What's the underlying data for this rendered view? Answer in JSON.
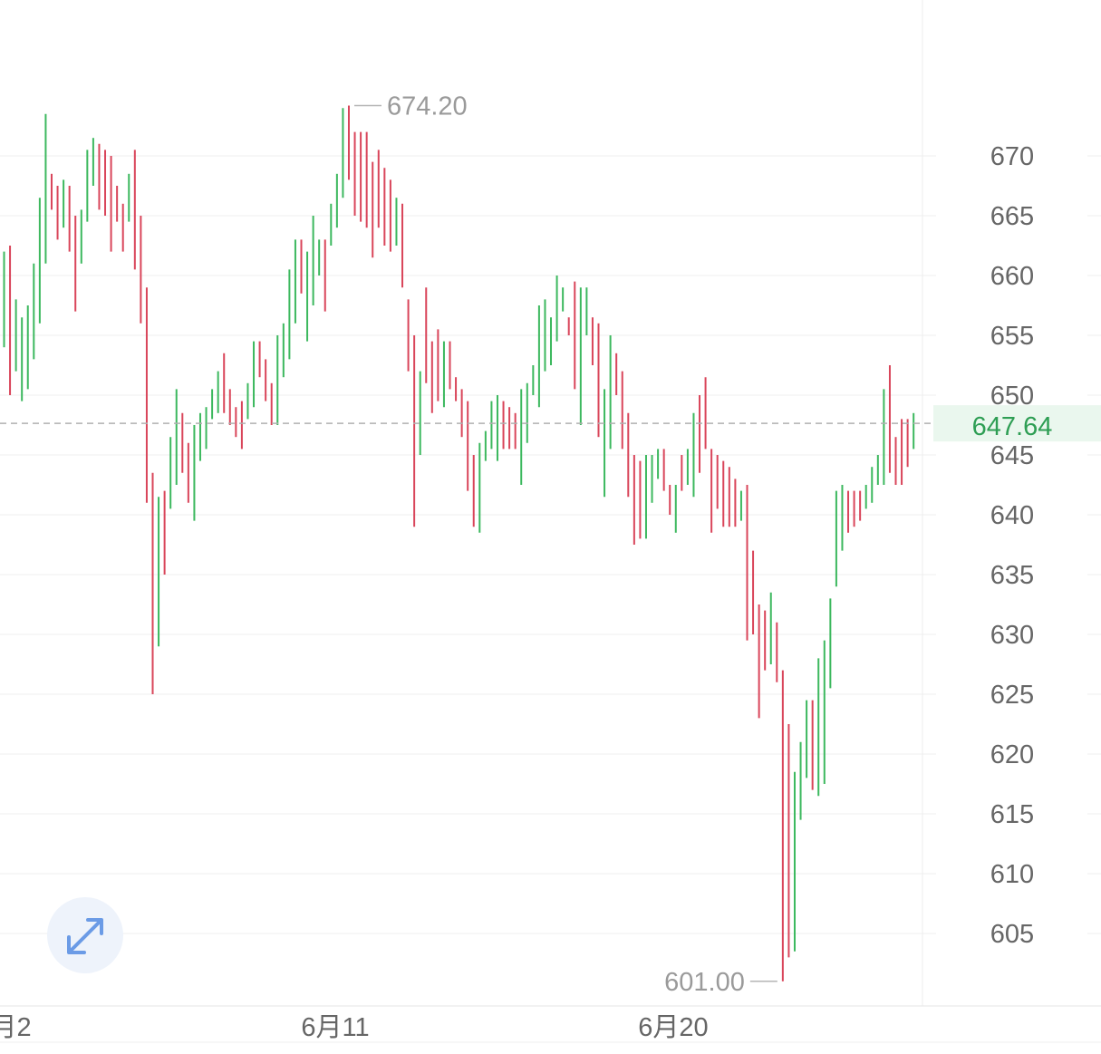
{
  "chart_data": {
    "type": "ohlc",
    "y_ticks": [
      "670",
      "665",
      "660",
      "655",
      "650",
      "645",
      "640",
      "635",
      "630",
      "625",
      "620",
      "615",
      "610",
      "605"
    ],
    "x_labels": [
      "月2",
      "6月11",
      "6月20"
    ],
    "ylim": [
      597,
      679
    ],
    "grid": true,
    "current_price": {
      "value": 647.64,
      "label": "647.64",
      "color": "#2e9e54"
    },
    "annotations": {
      "high": "674.20",
      "low": "601.00"
    },
    "colors": {
      "up": "#3cb85e",
      "down": "#d9455a",
      "grid": "#efefef",
      "price_line": "#b0b0b0"
    },
    "bars": [
      {
        "h": 662.0,
        "l": 654.0,
        "d": "up"
      },
      {
        "h": 662.5,
        "l": 650.0,
        "d": "down"
      },
      {
        "h": 658.0,
        "l": 652.0,
        "d": "up"
      },
      {
        "h": 656.5,
        "l": 649.5,
        "d": "up"
      },
      {
        "h": 657.5,
        "l": 650.5,
        "d": "up"
      },
      {
        "h": 661.0,
        "l": 653.0,
        "d": "up"
      },
      {
        "h": 666.5,
        "l": 656.0,
        "d": "up"
      },
      {
        "h": 673.5,
        "l": 661.0,
        "d": "up"
      },
      {
        "h": 668.5,
        "l": 665.5,
        "d": "down"
      },
      {
        "h": 667.5,
        "l": 663.0,
        "d": "down"
      },
      {
        "h": 668.0,
        "l": 664.0,
        "d": "up"
      },
      {
        "h": 667.5,
        "l": 662.0,
        "d": "down"
      },
      {
        "h": 665.0,
        "l": 657.0,
        "d": "down"
      },
      {
        "h": 665.5,
        "l": 661.0,
        "d": "up"
      },
      {
        "h": 670.5,
        "l": 664.5,
        "d": "up"
      },
      {
        "h": 671.5,
        "l": 667.5,
        "d": "up"
      },
      {
        "h": 671.0,
        "l": 665.5,
        "d": "down"
      },
      {
        "h": 670.5,
        "l": 665.0,
        "d": "down"
      },
      {
        "h": 670.0,
        "l": 662.0,
        "d": "down"
      },
      {
        "h": 667.5,
        "l": 664.5,
        "d": "down"
      },
      {
        "h": 666.0,
        "l": 662.0,
        "d": "down"
      },
      {
        "h": 668.5,
        "l": 664.5,
        "d": "up"
      },
      {
        "h": 670.5,
        "l": 660.5,
        "d": "down"
      },
      {
        "h": 665.0,
        "l": 656.0,
        "d": "down"
      },
      {
        "h": 659.0,
        "l": 641.0,
        "d": "down"
      },
      {
        "h": 643.5,
        "l": 625.0,
        "d": "down"
      },
      {
        "h": 641.5,
        "l": 629.0,
        "d": "up"
      },
      {
        "h": 642.0,
        "l": 635.0,
        "d": "down"
      },
      {
        "h": 646.5,
        "l": 640.5,
        "d": "up"
      },
      {
        "h": 650.5,
        "l": 642.5,
        "d": "up"
      },
      {
        "h": 648.5,
        "l": 643.5,
        "d": "down"
      },
      {
        "h": 646.0,
        "l": 641.0,
        "d": "down"
      },
      {
        "h": 647.5,
        "l": 639.5,
        "d": "up"
      },
      {
        "h": 648.5,
        "l": 644.5,
        "d": "up"
      },
      {
        "h": 649.0,
        "l": 645.5,
        "d": "up"
      },
      {
        "h": 650.5,
        "l": 648.0,
        "d": "up"
      },
      {
        "h": 652.0,
        "l": 648.5,
        "d": "up"
      },
      {
        "h": 653.5,
        "l": 648.5,
        "d": "down"
      },
      {
        "h": 650.5,
        "l": 647.5,
        "d": "down"
      },
      {
        "h": 649.0,
        "l": 646.5,
        "d": "down"
      },
      {
        "h": 649.5,
        "l": 645.5,
        "d": "down"
      },
      {
        "h": 651.0,
        "l": 648.0,
        "d": "up"
      },
      {
        "h": 654.5,
        "l": 649.0,
        "d": "up"
      },
      {
        "h": 654.5,
        "l": 651.5,
        "d": "down"
      },
      {
        "h": 653.0,
        "l": 649.5,
        "d": "down"
      },
      {
        "h": 651.0,
        "l": 647.5,
        "d": "down"
      },
      {
        "h": 655.0,
        "l": 647.5,
        "d": "up"
      },
      {
        "h": 656.0,
        "l": 651.5,
        "d": "up"
      },
      {
        "h": 660.5,
        "l": 653.0,
        "d": "up"
      },
      {
        "h": 663.0,
        "l": 656.0,
        "d": "up"
      },
      {
        "h": 663.0,
        "l": 658.5,
        "d": "down"
      },
      {
        "h": 662.0,
        "l": 654.5,
        "d": "up"
      },
      {
        "h": 665.0,
        "l": 657.5,
        "d": "up"
      },
      {
        "h": 663.0,
        "l": 660.0,
        "d": "up"
      },
      {
        "h": 663.0,
        "l": 657.0,
        "d": "down"
      },
      {
        "h": 666.0,
        "l": 662.5,
        "d": "up"
      },
      {
        "h": 668.5,
        "l": 664.0,
        "d": "up"
      },
      {
        "h": 674.0,
        "l": 666.5,
        "d": "up"
      },
      {
        "h": 674.2,
        "l": 668.0,
        "d": "down"
      },
      {
        "h": 672.0,
        "l": 665.0,
        "d": "down"
      },
      {
        "h": 672.0,
        "l": 664.5,
        "d": "down"
      },
      {
        "h": 672.0,
        "l": 664.0,
        "d": "down"
      },
      {
        "h": 669.5,
        "l": 661.5,
        "d": "down"
      },
      {
        "h": 670.5,
        "l": 664.0,
        "d": "down"
      },
      {
        "h": 669.0,
        "l": 662.5,
        "d": "down"
      },
      {
        "h": 668.0,
        "l": 662.0,
        "d": "down"
      },
      {
        "h": 666.5,
        "l": 662.5,
        "d": "up"
      },
      {
        "h": 666.0,
        "l": 659.0,
        "d": "down"
      },
      {
        "h": 658.0,
        "l": 652.0,
        "d": "down"
      },
      {
        "h": 655.0,
        "l": 639.0,
        "d": "down"
      },
      {
        "h": 652.0,
        "l": 645.0,
        "d": "up"
      },
      {
        "h": 659.0,
        "l": 651.0,
        "d": "down"
      },
      {
        "h": 654.5,
        "l": 648.5,
        "d": "down"
      },
      {
        "h": 655.5,
        "l": 649.5,
        "d": "down"
      },
      {
        "h": 654.5,
        "l": 649.0,
        "d": "up"
      },
      {
        "h": 654.5,
        "l": 650.5,
        "d": "down"
      },
      {
        "h": 651.5,
        "l": 649.5,
        "d": "down"
      },
      {
        "h": 650.5,
        "l": 646.5,
        "d": "down"
      },
      {
        "h": 649.5,
        "l": 642.0,
        "d": "down"
      },
      {
        "h": 645.0,
        "l": 639.0,
        "d": "down"
      },
      {
        "h": 646.0,
        "l": 638.5,
        "d": "up"
      },
      {
        "h": 647.0,
        "l": 644.5,
        "d": "up"
      },
      {
        "h": 649.5,
        "l": 645.5,
        "d": "up"
      },
      {
        "h": 650.0,
        "l": 644.5,
        "d": "up"
      },
      {
        "h": 649.5,
        "l": 645.5,
        "d": "down"
      },
      {
        "h": 649.0,
        "l": 645.5,
        "d": "down"
      },
      {
        "h": 648.5,
        "l": 645.5,
        "d": "down"
      },
      {
        "h": 650.5,
        "l": 642.5,
        "d": "up"
      },
      {
        "h": 651.0,
        "l": 646.0,
        "d": "up"
      },
      {
        "h": 652.5,
        "l": 650.0,
        "d": "up"
      },
      {
        "h": 657.5,
        "l": 649.0,
        "d": "up"
      },
      {
        "h": 658.0,
        "l": 652.0,
        "d": "up"
      },
      {
        "h": 656.5,
        "l": 652.5,
        "d": "up"
      },
      {
        "h": 660.0,
        "l": 654.5,
        "d": "up"
      },
      {
        "h": 659.0,
        "l": 657.0,
        "d": "up"
      },
      {
        "h": 656.5,
        "l": 655.0,
        "d": "down"
      },
      {
        "h": 659.5,
        "l": 650.5,
        "d": "down"
      },
      {
        "h": 659.0,
        "l": 647.5,
        "d": "up"
      },
      {
        "h": 659.0,
        "l": 655.0,
        "d": "up"
      },
      {
        "h": 656.5,
        "l": 652.5,
        "d": "down"
      },
      {
        "h": 656.0,
        "l": 646.5,
        "d": "down"
      },
      {
        "h": 650.5,
        "l": 641.5,
        "d": "up"
      },
      {
        "h": 655.0,
        "l": 645.5,
        "d": "up"
      },
      {
        "h": 653.5,
        "l": 650.0,
        "d": "down"
      },
      {
        "h": 652.0,
        "l": 645.5,
        "d": "down"
      },
      {
        "h": 648.5,
        "l": 641.5,
        "d": "down"
      },
      {
        "h": 645.0,
        "l": 637.5,
        "d": "down"
      },
      {
        "h": 644.5,
        "l": 638.0,
        "d": "down"
      },
      {
        "h": 645.0,
        "l": 638.0,
        "d": "up"
      },
      {
        "h": 645.0,
        "l": 641.0,
        "d": "up"
      },
      {
        "h": 645.5,
        "l": 643.0,
        "d": "up"
      },
      {
        "h": 645.5,
        "l": 642.0,
        "d": "down"
      },
      {
        "h": 642.5,
        "l": 640.0,
        "d": "down"
      },
      {
        "h": 642.5,
        "l": 638.5,
        "d": "up"
      },
      {
        "h": 645.0,
        "l": 642.0,
        "d": "down"
      },
      {
        "h": 645.5,
        "l": 642.5,
        "d": "up"
      },
      {
        "h": 648.5,
        "l": 641.5,
        "d": "up"
      },
      {
        "h": 650.0,
        "l": 643.5,
        "d": "down"
      },
      {
        "h": 651.5,
        "l": 645.5,
        "d": "down"
      },
      {
        "h": 645.5,
        "l": 638.5,
        "d": "down"
      },
      {
        "h": 645.0,
        "l": 640.5,
        "d": "down"
      },
      {
        "h": 644.5,
        "l": 639.0,
        "d": "down"
      },
      {
        "h": 644.0,
        "l": 639.0,
        "d": "down"
      },
      {
        "h": 643.0,
        "l": 639.0,
        "d": "down"
      },
      {
        "h": 642.0,
        "l": 639.5,
        "d": "up"
      },
      {
        "h": 642.5,
        "l": 629.5,
        "d": "down"
      },
      {
        "h": 637.0,
        "l": 630.0,
        "d": "down"
      },
      {
        "h": 632.5,
        "l": 623.0,
        "d": "down"
      },
      {
        "h": 632.0,
        "l": 627.0,
        "d": "down"
      },
      {
        "h": 633.5,
        "l": 627.5,
        "d": "up"
      },
      {
        "h": 631.0,
        "l": 626.0,
        "d": "down"
      },
      {
        "h": 627.0,
        "l": 601.0,
        "d": "down"
      },
      {
        "h": 622.5,
        "l": 603.0,
        "d": "down"
      },
      {
        "h": 618.5,
        "l": 603.5,
        "d": "up"
      },
      {
        "h": 621.0,
        "l": 614.5,
        "d": "up"
      },
      {
        "h": 624.5,
        "l": 618.0,
        "d": "up"
      },
      {
        "h": 624.5,
        "l": 617.0,
        "d": "down"
      },
      {
        "h": 628.0,
        "l": 616.5,
        "d": "up"
      },
      {
        "h": 629.5,
        "l": 617.5,
        "d": "up"
      },
      {
        "h": 633.0,
        "l": 625.5,
        "d": "up"
      },
      {
        "h": 642.0,
        "l": 634.0,
        "d": "up"
      },
      {
        "h": 642.5,
        "l": 637.0,
        "d": "up"
      },
      {
        "h": 642.0,
        "l": 638.5,
        "d": "down"
      },
      {
        "h": 642.0,
        "l": 639.0,
        "d": "down"
      },
      {
        "h": 642.0,
        "l": 639.5,
        "d": "down"
      },
      {
        "h": 642.5,
        "l": 640.5,
        "d": "up"
      },
      {
        "h": 644.0,
        "l": 641.0,
        "d": "up"
      },
      {
        "h": 645.0,
        "l": 642.5,
        "d": "up"
      },
      {
        "h": 650.5,
        "l": 642.5,
        "d": "up"
      },
      {
        "h": 652.5,
        "l": 643.5,
        "d": "down"
      },
      {
        "h": 646.5,
        "l": 642.5,
        "d": "down"
      },
      {
        "h": 648.0,
        "l": 642.5,
        "d": "down"
      },
      {
        "h": 648.0,
        "l": 644.0,
        "d": "down"
      },
      {
        "h": 648.5,
        "l": 645.5,
        "d": "up"
      }
    ]
  }
}
